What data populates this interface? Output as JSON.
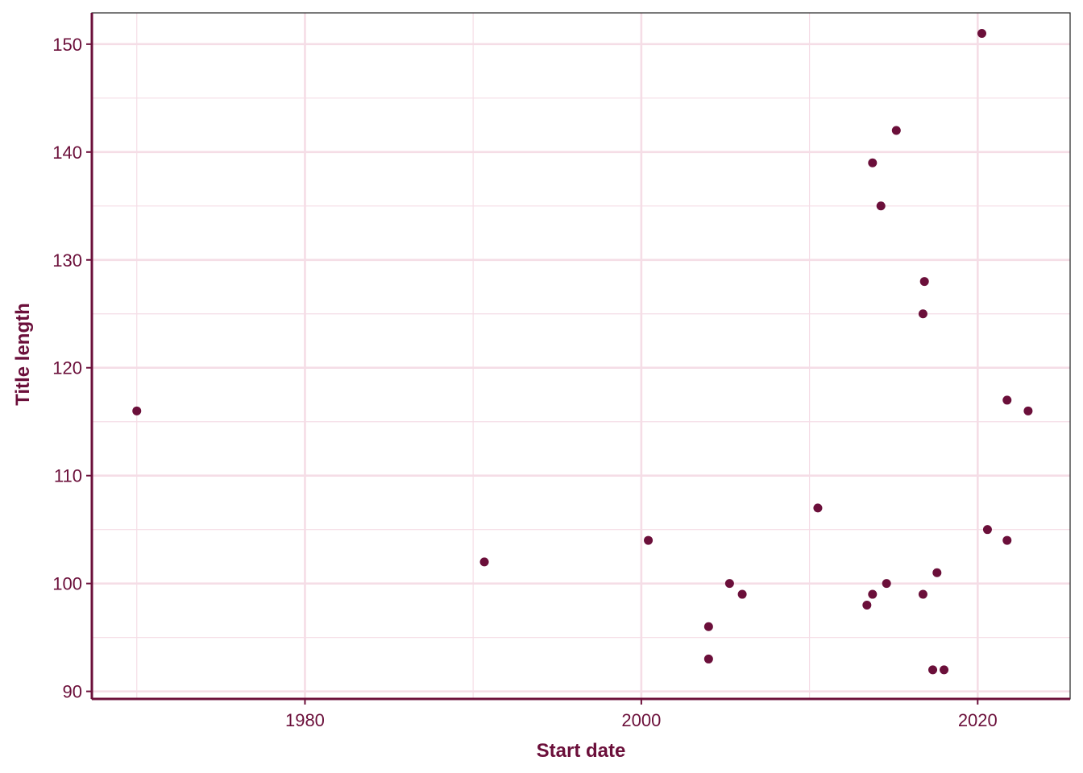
{
  "chart_data": {
    "type": "scatter",
    "title": "",
    "xlabel": "Start date",
    "ylabel": "Title length",
    "xlim": [
      "1967-05-01",
      "2025-07-01"
    ],
    "ylim": [
      89.3,
      152.9
    ],
    "x_ticks": [
      "1980",
      "2000",
      "2020"
    ],
    "x_minor": [
      "1970",
      "1990",
      "2010"
    ],
    "y_ticks": [
      90,
      100,
      110,
      120,
      130,
      140,
      150
    ],
    "grid": true,
    "colors": {
      "points": "#6b0f3a",
      "axis": "#6b0f3a",
      "grid": "#f5dde6"
    },
    "points": [
      {
        "x": "1970-01-01",
        "y": 116
      },
      {
        "x": "1990-09-01",
        "y": 102
      },
      {
        "x": "2000-06-01",
        "y": 104
      },
      {
        "x": "2004-01-01",
        "y": 96
      },
      {
        "x": "2004-01-01",
        "y": 93
      },
      {
        "x": "2005-04-01",
        "y": 100
      },
      {
        "x": "2006-01-01",
        "y": 99
      },
      {
        "x": "2010-07-01",
        "y": 107
      },
      {
        "x": "2013-06-01",
        "y": 98
      },
      {
        "x": "2013-10-01",
        "y": 139
      },
      {
        "x": "2013-10-01",
        "y": 99
      },
      {
        "x": "2014-04-01",
        "y": 135
      },
      {
        "x": "2014-08-01",
        "y": 100
      },
      {
        "x": "2015-03-01",
        "y": 142
      },
      {
        "x": "2016-11-01",
        "y": 128
      },
      {
        "x": "2016-10-01",
        "y": 125
      },
      {
        "x": "2016-10-01",
        "y": 99
      },
      {
        "x": "2017-05-01",
        "y": 92
      },
      {
        "x": "2017-08-01",
        "y": 101
      },
      {
        "x": "2018-01-01",
        "y": 92
      },
      {
        "x": "2020-04-01",
        "y": 151
      },
      {
        "x": "2020-08-01",
        "y": 105
      },
      {
        "x": "2021-10-01",
        "y": 117
      },
      {
        "x": "2021-10-01",
        "y": 104
      },
      {
        "x": "2023-01-01",
        "y": 116
      }
    ]
  }
}
